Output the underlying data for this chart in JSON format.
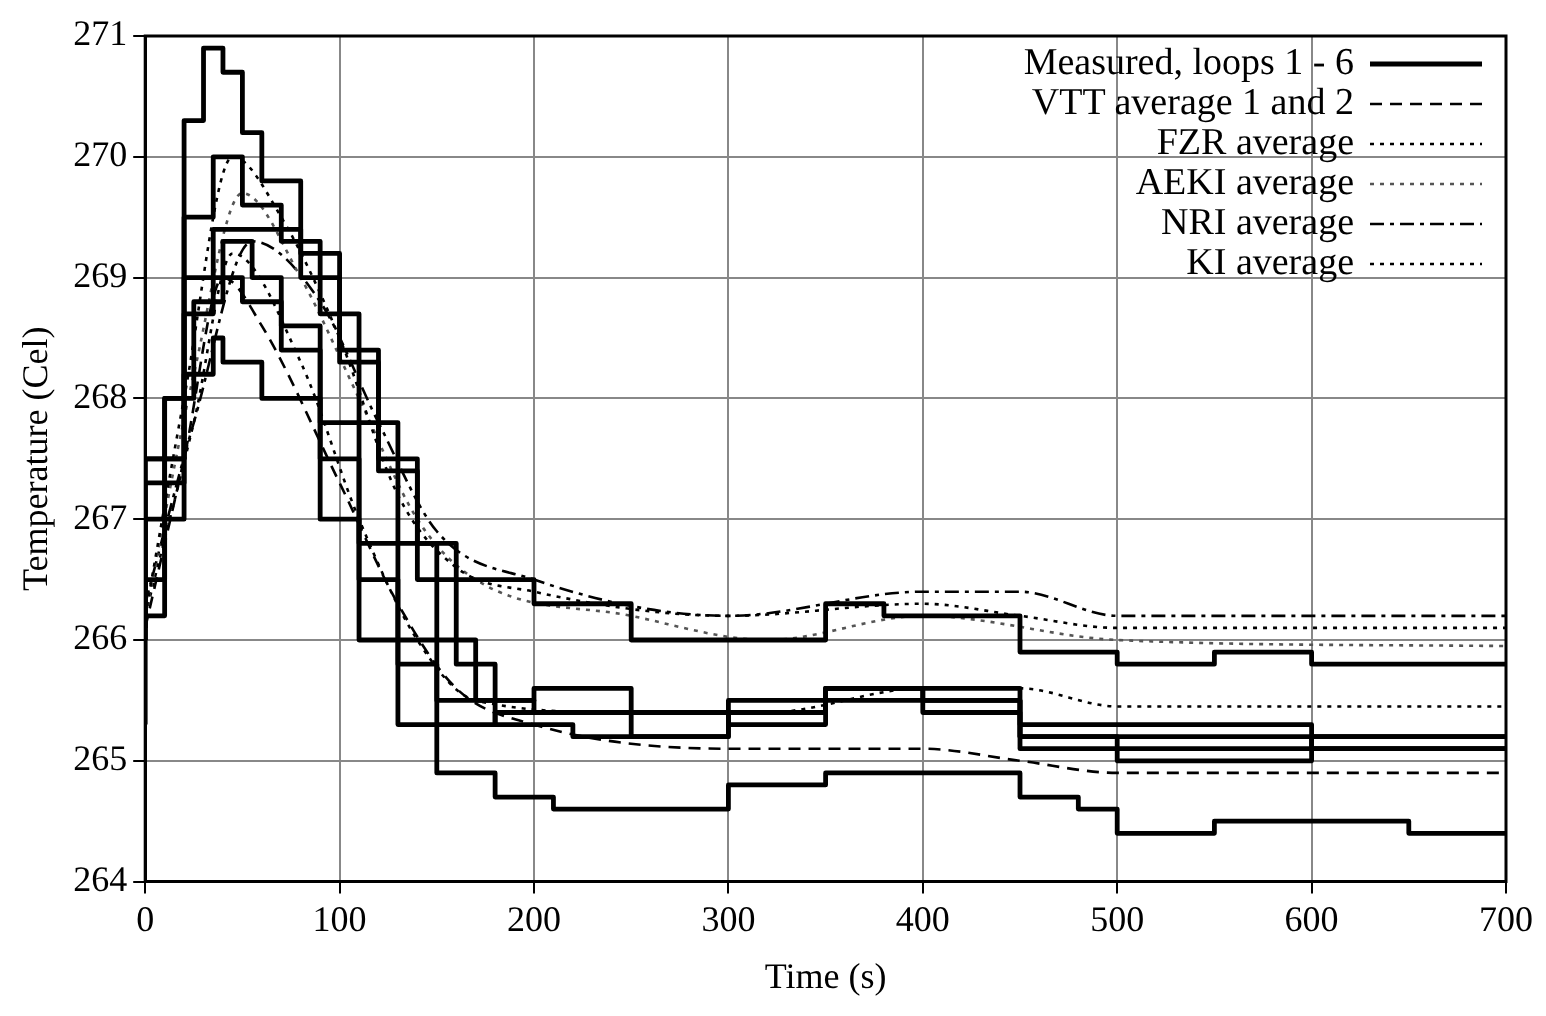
{
  "chart_data": {
    "type": "line",
    "xlabel": "Time (s)",
    "ylabel": "Temperature (Cel)",
    "xlim": [
      0,
      700
    ],
    "xticks": [
      0,
      100,
      200,
      300,
      400,
      500,
      600,
      700
    ],
    "ylim": [
      264,
      271
    ],
    "yticks": [
      264,
      265,
      266,
      267,
      268,
      269,
      270,
      271
    ],
    "grid": true,
    "legend": "top right",
    "marker": "none",
    "series": [
      {
        "name": "Measured, loops 1 - 6",
        "type": "step",
        "color": "#000000",
        "line_style": "solid",
        "x": [
          0,
          10,
          20,
          30,
          40,
          50,
          60,
          80,
          100,
          120,
          140,
          160,
          200,
          250,
          300,
          350,
          380,
          450,
          500,
          550,
          600,
          650,
          700
        ],
        "values": [
          266.2,
          266.5,
          268,
          270.3,
          270.9,
          270.7,
          270.2,
          269.8,
          269.2,
          268.4,
          267.5,
          266.8,
          266.5,
          266.3,
          266,
          266,
          266.3,
          266.2,
          265.9,
          265.8,
          265.9,
          265.8,
          265.8
        ]
      },
      {
        "type": "step",
        "color": "#000000",
        "line_style": "solid",
        "x": [
          0,
          20,
          35,
          50,
          70,
          90,
          110,
          130,
          150,
          170,
          200,
          250,
          300,
          350,
          400,
          450,
          500,
          600,
          700
        ],
        "values": [
          266,
          267.5,
          269.5,
          270,
          269.6,
          269.3,
          268.7,
          267.8,
          266.8,
          266,
          265.5,
          265.4,
          265.4,
          265.5,
          265.6,
          265.5,
          265.2,
          265.2,
          265.2
        ]
      },
      {
        "type": "step",
        "color": "#000000",
        "line_style": "solid",
        "x": [
          0,
          20,
          35,
          50,
          80,
          100,
          120,
          140,
          160,
          180,
          200,
          250,
          300,
          350,
          400,
          450,
          500,
          550,
          600,
          640,
          700
        ],
        "values": [
          266.1,
          267.5,
          269,
          269.4,
          269.4,
          269,
          268.3,
          267.4,
          266.5,
          265.8,
          265.5,
          265.6,
          265.4,
          265.3,
          265.6,
          265.6,
          265.3,
          265.3,
          265.3,
          265.1,
          265.1
        ]
      },
      {
        "type": "step",
        "color": "#000000",
        "line_style": "solid",
        "x": [
          0,
          10,
          25,
          40,
          55,
          70,
          90,
          110,
          130,
          150,
          180,
          220,
          300,
          350,
          400,
          450,
          500,
          600,
          700
        ],
        "values": [
          265.3,
          266.2,
          268,
          268.8,
          269.3,
          269,
          268.6,
          267.8,
          266.8,
          266,
          265.5,
          265.3,
          265.2,
          265.4,
          265.5,
          265.4,
          265.1,
          265,
          265.1
        ]
      },
      {
        "type": "step",
        "color": "#000000",
        "line_style": "solid",
        "x": [
          0,
          20,
          35,
          50,
          70,
          90,
          110,
          130,
          150,
          180,
          250,
          300,
          350,
          400,
          450,
          500,
          600,
          700
        ],
        "values": [
          266.1,
          267.3,
          268.7,
          269,
          268.8,
          268.4,
          267.5,
          266.5,
          265.8,
          265.3,
          265.4,
          265.2,
          265.4,
          265.6,
          265.5,
          265.2,
          265.1,
          265.2
        ]
      },
      {
        "type": "step",
        "color": "#000000",
        "line_style": "solid",
        "x": [
          0,
          20,
          35,
          40,
          60,
          90,
          110,
          130,
          150,
          180,
          210,
          250,
          300,
          350,
          400,
          450,
          480,
          500,
          550,
          600,
          650,
          700
        ],
        "values": [
          266,
          267,
          268.2,
          268.5,
          268.3,
          268,
          267,
          266,
          265.3,
          264.9,
          264.7,
          264.6,
          264.6,
          264.8,
          264.9,
          264.9,
          264.7,
          264.6,
          264.4,
          264.5,
          264.5,
          264.4
        ]
      },
      {
        "name": "VTT average 1 and 2",
        "color": "#000000",
        "line_style": "dashed",
        "x": [
          0,
          20,
          40,
          60,
          100,
          130,
          160,
          200,
          300,
          400,
          450,
          500,
          700
        ],
        "values": [
          266.1,
          267.5,
          269,
          268.6,
          267.3,
          266.3,
          265.6,
          265.3,
          265.1,
          265.1,
          265,
          264.9,
          264.9
        ]
      },
      {
        "name": "FZR average",
        "color": "#000000",
        "line_style": "dotted",
        "x": [
          0,
          20,
          45,
          70,
          100,
          130,
          160,
          200,
          300,
          400,
          450,
          500,
          700
        ],
        "values": [
          266.2,
          268,
          270,
          269.5,
          268.5,
          267.2,
          266.6,
          266.4,
          266.2,
          266.3,
          266.2,
          266.1,
          266.1
        ]
      },
      {
        "name": "AEKI average",
        "color": "#555555",
        "line_style": "dotted",
        "x": [
          0,
          25,
          50,
          80,
          110,
          140,
          170,
          250,
          320,
          400,
          500,
          700
        ],
        "values": [
          266.2,
          268.2,
          269.7,
          269,
          268,
          267,
          266.5,
          266.2,
          266,
          266.2,
          266,
          265.95
        ]
      },
      {
        "name": "NRI average",
        "color": "#000000",
        "line_style": "dashdot",
        "x": [
          0,
          25,
          55,
          90,
          120,
          150,
          200,
          300,
          400,
          450,
          500,
          700
        ],
        "values": [
          266.3,
          267.8,
          269.3,
          268.8,
          267.8,
          266.9,
          266.5,
          266.2,
          266.4,
          266.4,
          266.2,
          266.2
        ]
      },
      {
        "name": "KI average",
        "color": "#000000",
        "line_style": "dotted",
        "x": [
          0,
          25,
          45,
          80,
          110,
          140,
          170,
          250,
          320,
          400,
          450,
          500,
          700
        ],
        "values": [
          266.2,
          267.8,
          269.2,
          268.3,
          267,
          266,
          265.5,
          265.4,
          265.4,
          265.6,
          265.6,
          265.45,
          265.45
        ]
      }
    ]
  }
}
